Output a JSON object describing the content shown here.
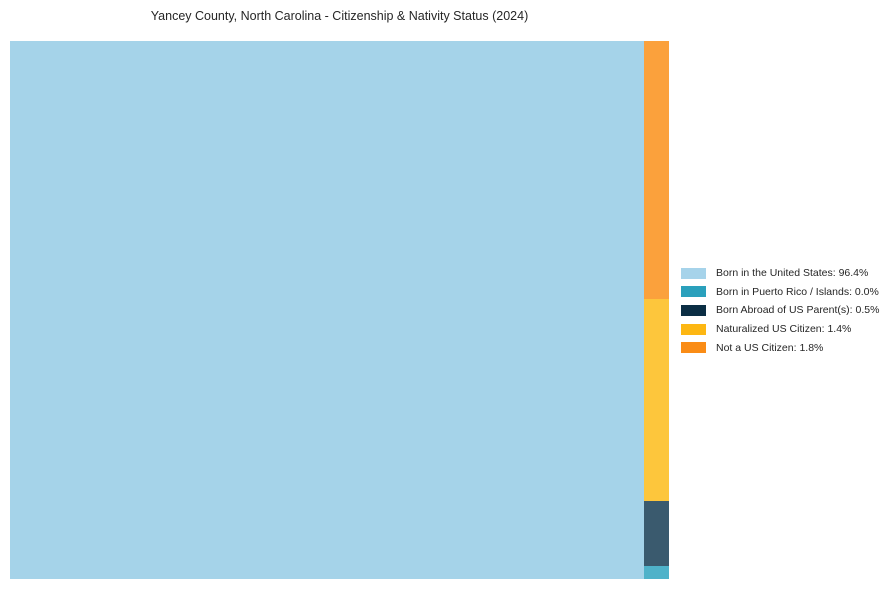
{
  "title": "Yancey County, North Carolina - Citizenship & Nativity Status (2024)",
  "legend": {
    "position": "right",
    "items": [
      {
        "label": "Born in the United States: 96.4%",
        "swatch_color": "#a6d3ea"
      },
      {
        "label": "Born in Puerto Rico / Islands: 0.0%",
        "swatch_color": "#2aa0bc"
      },
      {
        "label": "Born Abroad of US Parent(s): 0.5%",
        "swatch_color": "#0b2e44"
      },
      {
        "label": "Naturalized US Citizen: 1.4%",
        "swatch_color": "#fdb713"
      },
      {
        "label": "Not a US Citizen: 1.8%",
        "swatch_color": "#fa8c16"
      }
    ]
  },
  "colors": {
    "background": "#ffffff",
    "title_text": "#262626",
    "tile_born_us": "#a5d3e9",
    "tile_born_pr": "#4fb2c9",
    "tile_born_abroad": "#3a5a6e",
    "tile_naturalized": "#fdc63c",
    "tile_not_citizen": "#fba13c"
  },
  "chart_data": {
    "type": "treemap",
    "title": "Yancey County, North Carolina - Citizenship & Nativity Status (2024)",
    "categories": [
      "Born in the United States",
      "Born in Puerto Rico / Islands",
      "Born Abroad of US Parent(s)",
      "Naturalized US Citizen",
      "Not a US Citizen"
    ],
    "values": [
      96.4,
      0.0,
      0.5,
      1.4,
      1.8
    ],
    "unit": "%",
    "tile_colors": [
      "#a5d3e9",
      "#4fb2c9",
      "#3a5a6e",
      "#fdc63c",
      "#fba13c"
    ],
    "legend_colors": [
      "#a6d3ea",
      "#2aa0bc",
      "#0b2e44",
      "#fdb713",
      "#fa8c16"
    ],
    "layout": "squarify",
    "legend_position": "right",
    "data_labels": "none",
    "notes": "Large tile fills left side; remaining categories stacked in a narrow right column ordered top-to-bottom: Not a US Citizen, Naturalized US Citizen, Born Abroad of US Parent(s), Born in Puerto Rico / Islands"
  }
}
